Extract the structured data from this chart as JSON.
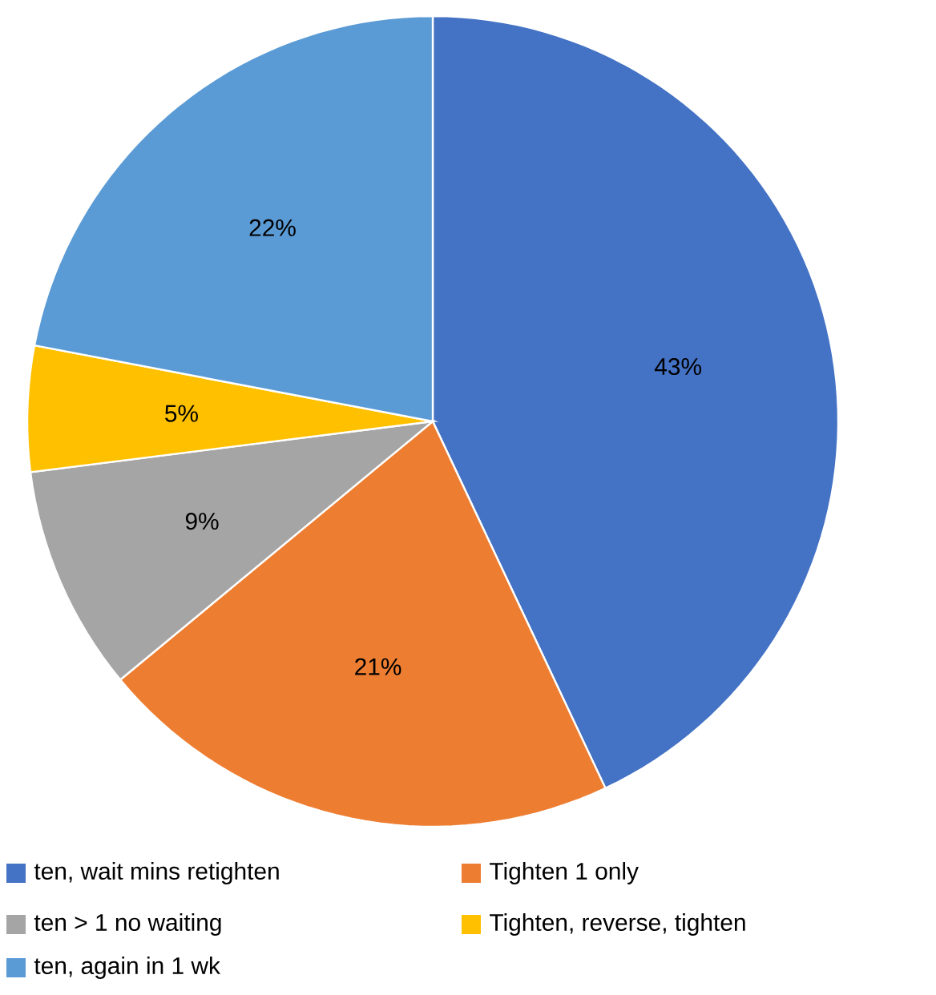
{
  "chart_data": {
    "type": "pie",
    "categories": [
      "ten, wait mins retighten",
      "Tighten 1 only",
      "ten > 1 no waiting",
      "Tighten, reverse, tighten",
      "ten, again in 1 wk"
    ],
    "values": [
      43,
      21,
      9,
      5,
      22
    ],
    "value_labels": [
      "43%",
      "21%",
      "9%",
      "5%",
      "22%"
    ],
    "colors": [
      "#4472c4",
      "#ed7d31",
      "#a5a5a5",
      "#ffc000",
      "#5b9bd5"
    ],
    "legend": "bottom"
  }
}
